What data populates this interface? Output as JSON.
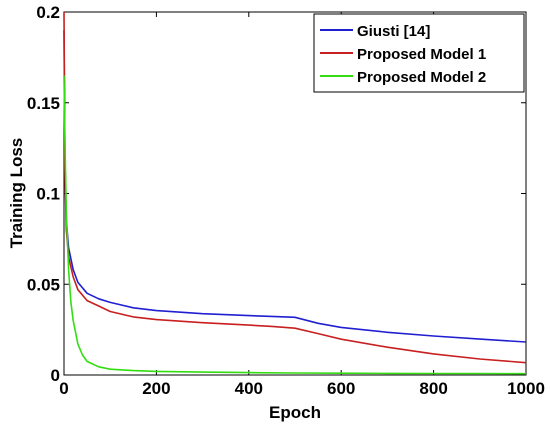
{
  "chart_data": {
    "type": "line",
    "title": "",
    "xlabel": "Epoch",
    "ylabel": "Training Loss",
    "xlim": [
      0,
      1000
    ],
    "ylim": [
      0,
      0.2
    ],
    "xticks": [
      0,
      200,
      400,
      600,
      800,
      1000
    ],
    "xtick_labels": [
      "0",
      "200",
      "400",
      "600",
      "800",
      "1000"
    ],
    "yticks": [
      0,
      0.05,
      0.1,
      0.15,
      0.2
    ],
    "ytick_labels": [
      "0",
      "0.05",
      "0.1",
      "0.15",
      "0.2"
    ],
    "grid": false,
    "legend_position": "top-right",
    "series": [
      {
        "name": "Giusti [14]",
        "color": "#2020d0",
        "x": [
          0,
          2,
          5,
          10,
          20,
          30,
          50,
          75,
          100,
          150,
          200,
          300,
          400,
          450,
          500,
          550,
          600,
          700,
          800,
          900,
          1000
        ],
        "y": [
          0.19,
          0.12,
          0.085,
          0.07,
          0.058,
          0.051,
          0.045,
          0.042,
          0.04,
          0.037,
          0.0355,
          0.0338,
          0.0327,
          0.0323,
          0.0318,
          0.0285,
          0.0262,
          0.0235,
          0.0215,
          0.0198,
          0.0182
        ]
      },
      {
        "name": "Proposed Model 1",
        "color": "#c82020",
        "x": [
          0,
          2,
          5,
          10,
          20,
          30,
          50,
          75,
          100,
          150,
          200,
          300,
          400,
          450,
          500,
          550,
          600,
          700,
          800,
          900,
          1000
        ],
        "y": [
          0.2,
          0.115,
          0.08,
          0.065,
          0.054,
          0.047,
          0.041,
          0.038,
          0.035,
          0.032,
          0.0305,
          0.0288,
          0.0275,
          0.0268,
          0.0258,
          0.0228,
          0.0197,
          0.0153,
          0.0116,
          0.0088,
          0.0068
        ]
      },
      {
        "name": "Proposed Model 2",
        "color": "#33dd11",
        "x": [
          0,
          2,
          5,
          10,
          15,
          20,
          30,
          40,
          50,
          75,
          100,
          150,
          200,
          300,
          400,
          500,
          600,
          700,
          800,
          900,
          1000
        ],
        "y": [
          0.165,
          0.13,
          0.09,
          0.058,
          0.04,
          0.03,
          0.017,
          0.011,
          0.0075,
          0.0045,
          0.0032,
          0.0024,
          0.002,
          0.0016,
          0.0013,
          0.0011,
          0.001,
          0.0009,
          0.0008,
          0.0008,
          0.0007
        ]
      }
    ]
  }
}
